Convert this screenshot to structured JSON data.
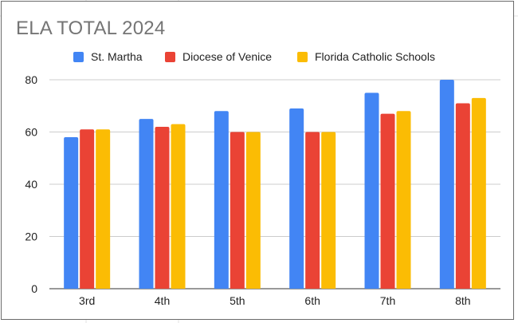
{
  "chart_data": {
    "type": "bar",
    "title": "ELA TOTAL 2024",
    "categories": [
      "3rd",
      "4th",
      "5th",
      "6th",
      "7th",
      "8th"
    ],
    "series": [
      {
        "name": "St. Martha",
        "color": "#4285f4",
        "values": [
          58,
          65,
          68,
          69,
          75,
          80
        ]
      },
      {
        "name": "Diocese of Venice",
        "color": "#ea4335",
        "values": [
          61,
          62,
          60,
          60,
          67,
          71
        ]
      },
      {
        "name": "Florida Catholic Schools",
        "color": "#fbbc04",
        "values": [
          61,
          63,
          60,
          60,
          68,
          73
        ]
      }
    ],
    "ylim": [
      0,
      80
    ],
    "yticks": [
      "0",
      "20",
      "40",
      "60",
      "80"
    ],
    "grid": true,
    "legend_position": "top"
  }
}
